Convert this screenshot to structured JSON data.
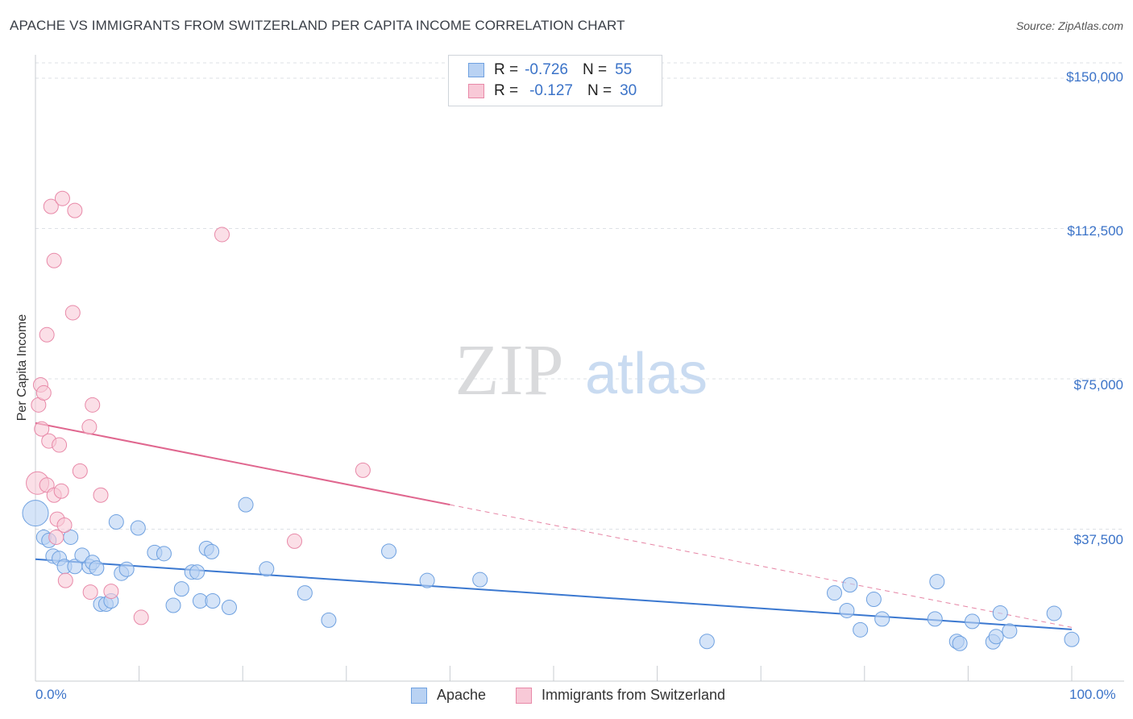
{
  "title": "APACHE VS IMMIGRANTS FROM SWITZERLAND PER CAPITA INCOME CORRELATION CHART",
  "source": "Source: ZipAtlas.com",
  "watermark": {
    "zip": "ZIP",
    "atlas": "atlas"
  },
  "legend_top": {
    "r_label": "R =",
    "n_label": "N =",
    "rows": [
      {
        "r": "-0.726",
        "n": "55",
        "color": "#6fa1e0",
        "fill": "#b9d2f3"
      },
      {
        "r": "-0.127",
        "n": "30",
        "color": "#e889a8",
        "fill": "#f8c9d7"
      }
    ]
  },
  "legend_bottom": [
    {
      "label": "Apache",
      "color": "#6fa1e0",
      "fill": "#b9d2f3"
    },
    {
      "label": "Immigrants from Switzerland",
      "color": "#e889a8",
      "fill": "#f8c9d7"
    }
  ],
  "chart_data": {
    "type": "scatter",
    "xlabel": "",
    "ylabel": "Per Capita Income",
    "xlim": [
      0,
      100
    ],
    "ylim": [
      0,
      150000
    ],
    "x_tick_labels": [
      "0.0%",
      "100.0%"
    ],
    "y_ticks": [
      37500,
      75000,
      112500,
      150000
    ],
    "y_tick_labels": [
      "$37,500",
      "$75,000",
      "$112,500",
      "$150,000"
    ],
    "grid": true,
    "series": [
      {
        "name": "Apache",
        "color": "#3b78d0",
        "fill": "#b9d2f3",
        "trend": {
          "x0": 0,
          "y0": 30000,
          "x1": 100,
          "y1": 12500,
          "solid_until": 100
        },
        "points": [
          [
            0.0,
            41500,
            16
          ],
          [
            0.8,
            35500,
            9
          ],
          [
            1.3,
            34700,
            9
          ],
          [
            1.7,
            30800,
            9
          ],
          [
            2.3,
            30200,
            9
          ],
          [
            2.8,
            28200,
            9
          ],
          [
            3.4,
            35500,
            9
          ],
          [
            3.8,
            28200,
            9
          ],
          [
            4.5,
            31000,
            9
          ],
          [
            5.2,
            28200,
            9
          ],
          [
            5.5,
            29200,
            9
          ],
          [
            5.9,
            27800,
            9
          ],
          [
            6.3,
            18800,
            9
          ],
          [
            6.8,
            18800,
            9
          ],
          [
            7.3,
            19600,
            9
          ],
          [
            7.8,
            39300,
            9
          ],
          [
            8.3,
            26500,
            9
          ],
          [
            8.8,
            27500,
            9
          ],
          [
            9.9,
            37800,
            9
          ],
          [
            11.5,
            31700,
            9
          ],
          [
            12.4,
            31400,
            9
          ],
          [
            13.3,
            18500,
            9
          ],
          [
            14.1,
            22600,
            9
          ],
          [
            15.1,
            26800,
            9
          ],
          [
            15.6,
            26800,
            9
          ],
          [
            15.9,
            19600,
            9
          ],
          [
            16.5,
            32700,
            9
          ],
          [
            17.0,
            31900,
            9
          ],
          [
            17.1,
            19600,
            9
          ],
          [
            18.7,
            18000,
            9
          ],
          [
            20.3,
            43600,
            9
          ],
          [
            22.3,
            27600,
            9
          ],
          [
            26.0,
            21600,
            9
          ],
          [
            28.3,
            14800,
            9
          ],
          [
            34.1,
            32000,
            9
          ],
          [
            37.8,
            24700,
            9
          ],
          [
            42.9,
            24900,
            9
          ],
          [
            64.8,
            9500,
            9
          ],
          [
            77.1,
            21600,
            9
          ],
          [
            78.3,
            17200,
            9
          ],
          [
            78.6,
            23600,
            9
          ],
          [
            79.6,
            12400,
            9
          ],
          [
            80.9,
            20000,
            9
          ],
          [
            81.7,
            15100,
            9
          ],
          [
            86.8,
            15100,
            9
          ],
          [
            87.0,
            24400,
            9
          ],
          [
            88.9,
            9500,
            9
          ],
          [
            89.2,
            9000,
            9
          ],
          [
            90.4,
            14500,
            9
          ],
          [
            92.4,
            9400,
            9
          ],
          [
            92.7,
            10700,
            9
          ],
          [
            93.1,
            16600,
            9
          ],
          [
            94.0,
            12100,
            9
          ],
          [
            98.3,
            16500,
            9
          ],
          [
            100.0,
            10000,
            9
          ]
        ]
      },
      {
        "name": "Immigrants from Switzerland",
        "color": "#e0678f",
        "fill": "#f8c9d7",
        "trend": {
          "x0": 0,
          "y0": 64000,
          "x1": 100,
          "y1": 13000,
          "solid_until": 40
        },
        "points": [
          [
            0.2,
            49000,
            14
          ],
          [
            0.3,
            68500,
            9
          ],
          [
            0.5,
            73500,
            9
          ],
          [
            0.6,
            62500,
            9
          ],
          [
            0.8,
            71500,
            9
          ],
          [
            1.1,
            48500,
            9
          ],
          [
            1.1,
            86000,
            9
          ],
          [
            1.3,
            59500,
            9
          ],
          [
            1.5,
            118000,
            9
          ],
          [
            1.8,
            104500,
            9
          ],
          [
            1.8,
            46000,
            9
          ],
          [
            2.0,
            35500,
            9
          ],
          [
            2.1,
            40000,
            9
          ],
          [
            2.3,
            58500,
            9
          ],
          [
            2.5,
            47000,
            9
          ],
          [
            2.6,
            120000,
            9
          ],
          [
            2.8,
            38500,
            9
          ],
          [
            2.9,
            24700,
            9
          ],
          [
            3.6,
            91500,
            9
          ],
          [
            3.8,
            117000,
            9
          ],
          [
            4.3,
            52000,
            9
          ],
          [
            5.2,
            63000,
            9
          ],
          [
            5.3,
            21800,
            9
          ],
          [
            5.5,
            68500,
            9
          ],
          [
            6.3,
            46000,
            9
          ],
          [
            7.3,
            22000,
            9
          ],
          [
            10.2,
            15500,
            9
          ],
          [
            18.0,
            111000,
            9
          ],
          [
            25.0,
            34500,
            9
          ],
          [
            31.6,
            52200,
            9
          ]
        ]
      }
    ]
  }
}
